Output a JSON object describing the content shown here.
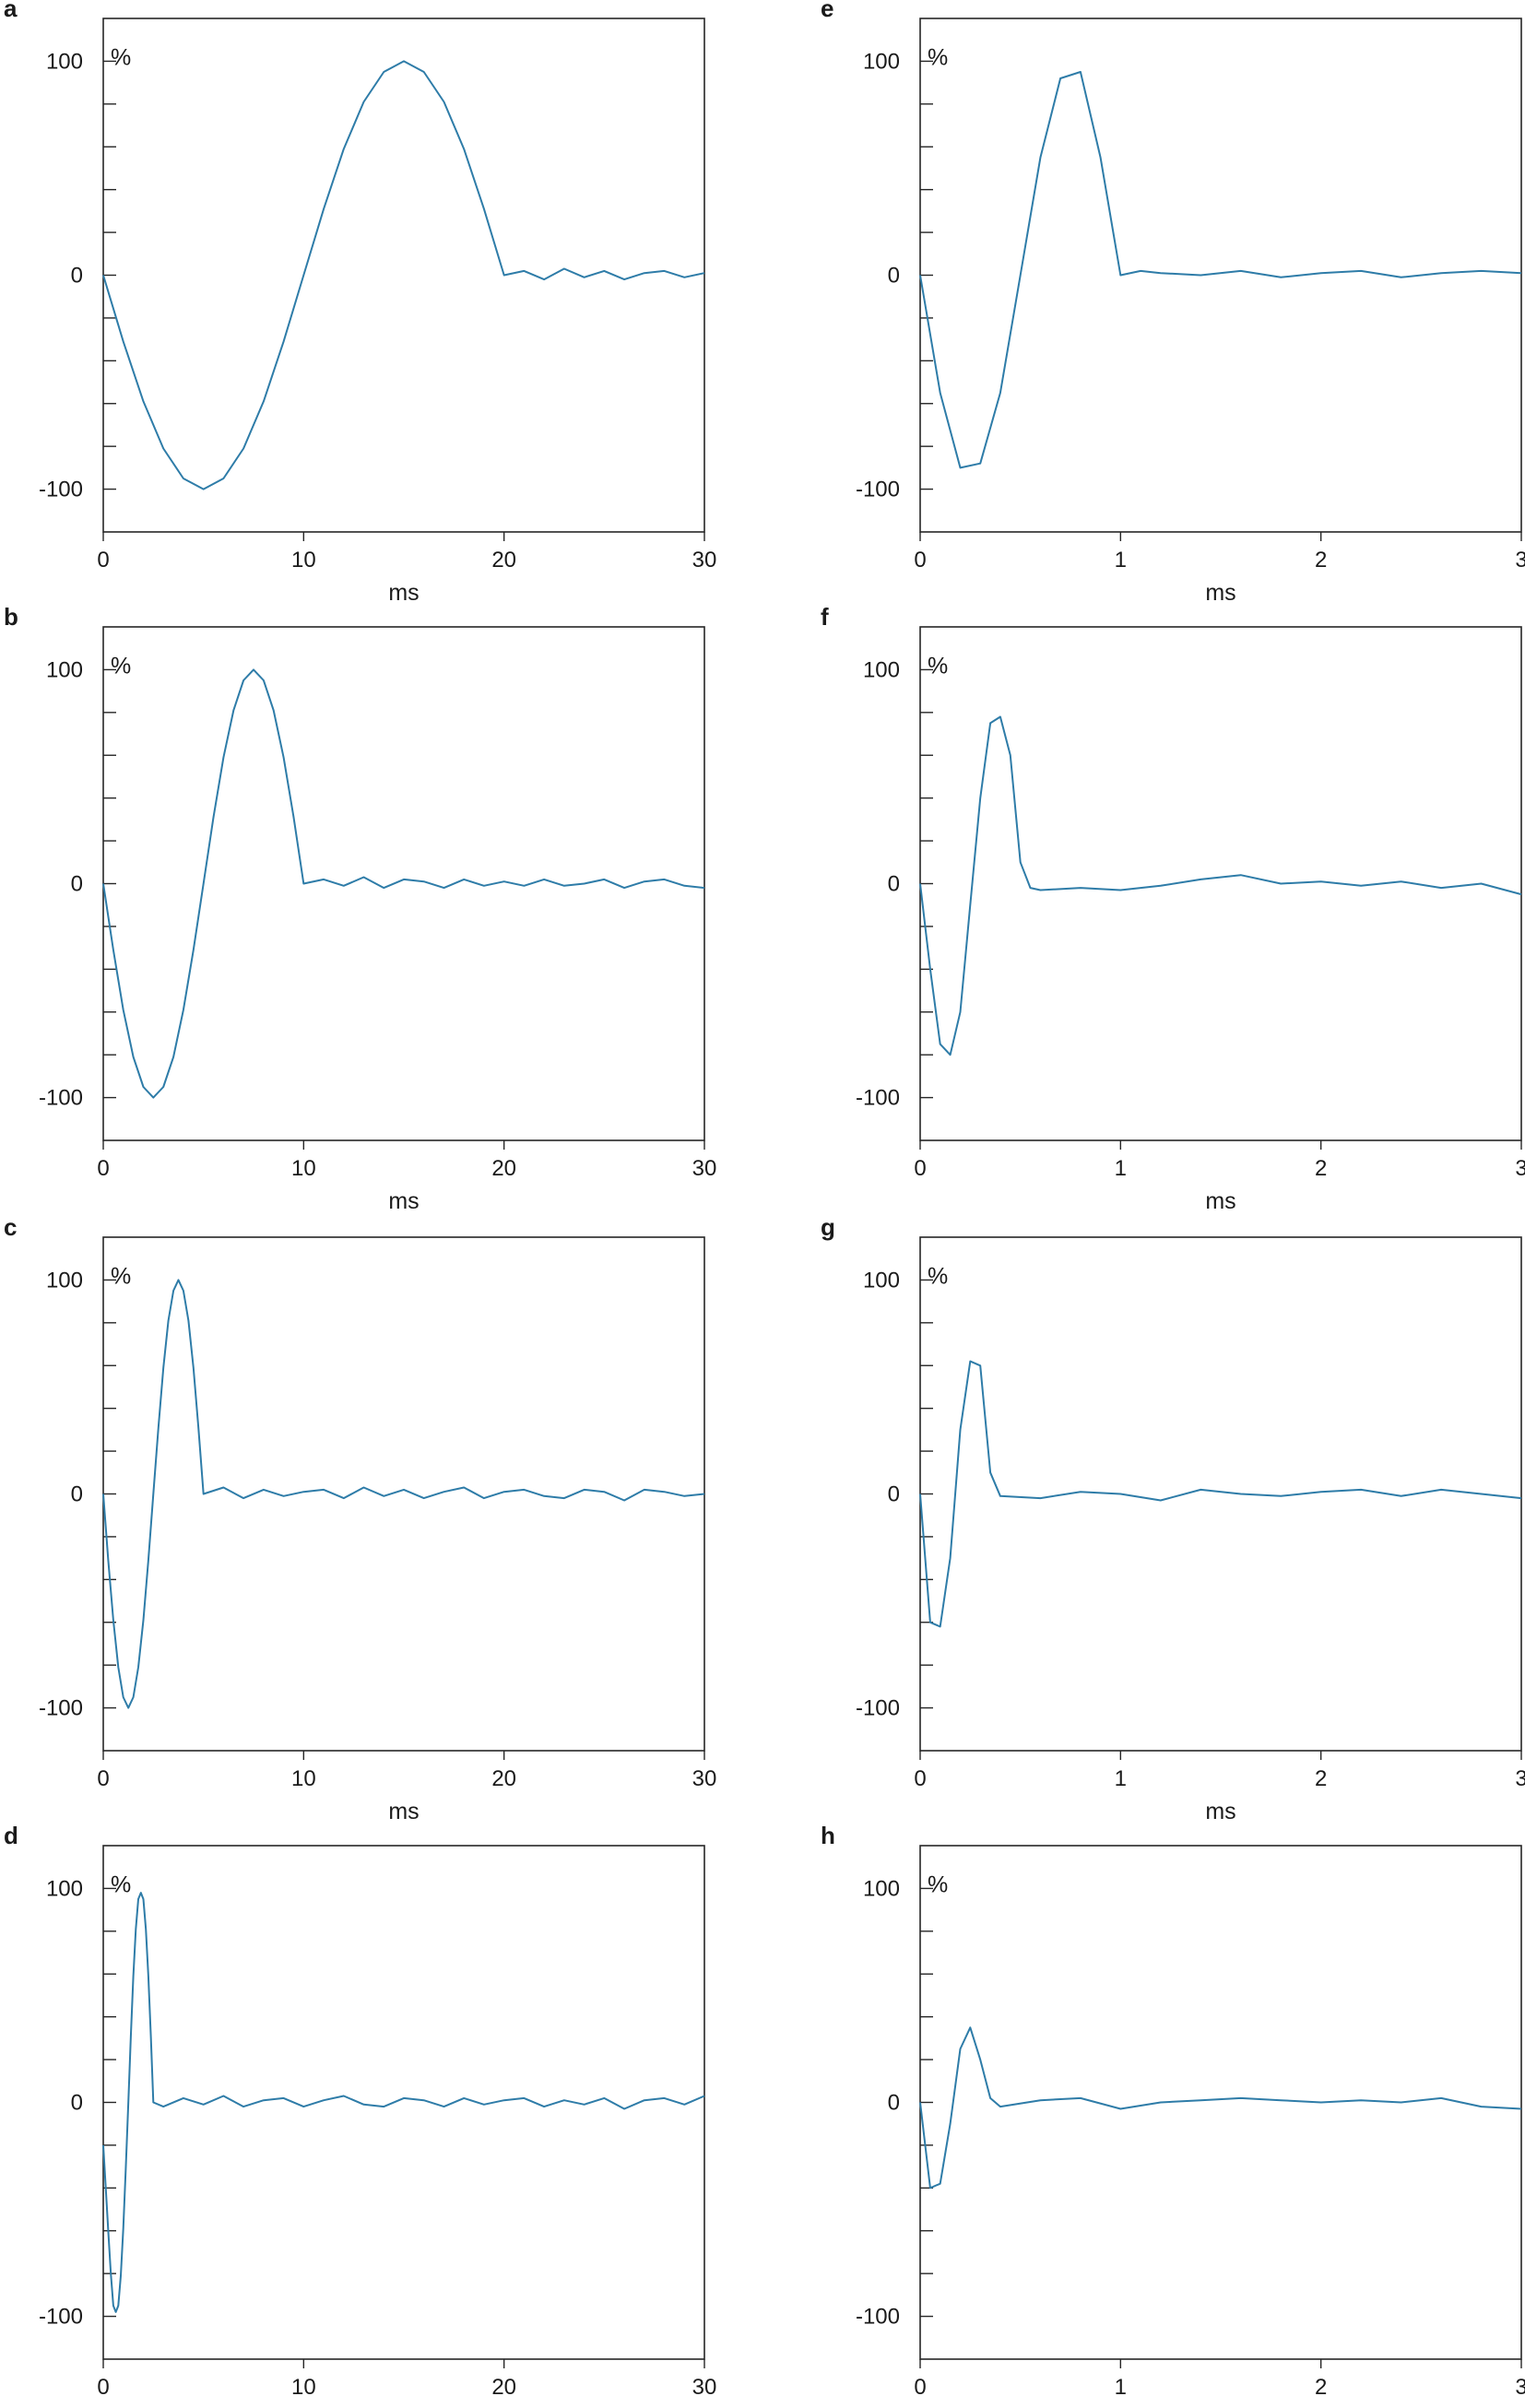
{
  "chart_data": [
    {
      "panel": "a",
      "type": "line",
      "xlabel": "ms",
      "ylabel": "%",
      "xlim": [
        0,
        30
      ],
      "ylim": [
        -120,
        120
      ],
      "x_ticks": [
        "0",
        "10",
        "20",
        "30"
      ],
      "y_ticks": [
        "100",
        "0",
        "-100"
      ],
      "grid": false,
      "series": [
        {
          "x": [
            0,
            1,
            2,
            3,
            4,
            5,
            6,
            7,
            8,
            9,
            10,
            11,
            12,
            13,
            14,
            15,
            16,
            17,
            18,
            19,
            20,
            21,
            22,
            23,
            24,
            25,
            26,
            27,
            28,
            29,
            30
          ],
          "values": [
            0,
            -31,
            -59,
            -81,
            -95,
            -100,
            -95,
            -81,
            -59,
            -31,
            0,
            31,
            59,
            81,
            95,
            100,
            95,
            81,
            59,
            31,
            0,
            2,
            -2,
            3,
            -1,
            2,
            -2,
            1,
            2,
            -1,
            1
          ]
        }
      ]
    },
    {
      "panel": "b",
      "type": "line",
      "xlabel": "ms",
      "ylabel": "%",
      "xlim": [
        0,
        30
      ],
      "ylim": [
        -120,
        120
      ],
      "x_ticks": [
        "0",
        "10",
        "20",
        "30"
      ],
      "y_ticks": [
        "100",
        "0",
        "-100"
      ],
      "grid": false,
      "series": [
        {
          "x": [
            0,
            0.5,
            1,
            1.5,
            2,
            2.5,
            3,
            3.5,
            4,
            4.5,
            5,
            5.5,
            6,
            6.5,
            7,
            7.5,
            8,
            8.5,
            9,
            9.5,
            10,
            11,
            12,
            13,
            14,
            15,
            16,
            17,
            18,
            19,
            20,
            21,
            22,
            23,
            24,
            25,
            26,
            27,
            28,
            29,
            30
          ],
          "values": [
            0,
            -31,
            -59,
            -81,
            -95,
            -100,
            -95,
            -81,
            -59,
            -31,
            0,
            31,
            59,
            81,
            95,
            100,
            95,
            81,
            59,
            31,
            0,
            2,
            -1,
            3,
            -2,
            2,
            1,
            -2,
            2,
            -1,
            1,
            -1,
            2,
            -1,
            0,
            2,
            -2,
            1,
            2,
            -1,
            -2
          ]
        }
      ]
    },
    {
      "panel": "c",
      "type": "line",
      "xlabel": "ms",
      "ylabel": "%",
      "xlim": [
        0,
        30
      ],
      "ylim": [
        -120,
        120
      ],
      "x_ticks": [
        "0",
        "10",
        "20",
        "30"
      ],
      "y_ticks": [
        "100",
        "0",
        "-100"
      ],
      "grid": false,
      "series": [
        {
          "x": [
            0,
            0.25,
            0.5,
            0.75,
            1,
            1.25,
            1.5,
            1.75,
            2,
            2.25,
            2.5,
            2.75,
            3,
            3.25,
            3.5,
            3.75,
            4,
            4.25,
            4.5,
            4.75,
            5,
            6,
            7,
            8,
            9,
            10,
            11,
            12,
            13,
            14,
            15,
            16,
            17,
            18,
            19,
            20,
            21,
            22,
            23,
            24,
            25,
            26,
            27,
            28,
            29,
            30
          ],
          "values": [
            0,
            -31,
            -59,
            -81,
            -95,
            -100,
            -95,
            -81,
            -59,
            -31,
            0,
            31,
            59,
            81,
            95,
            100,
            95,
            81,
            59,
            31,
            0,
            3,
            -2,
            2,
            -1,
            1,
            2,
            -2,
            3,
            -1,
            2,
            -2,
            1,
            3,
            -2,
            1,
            2,
            -1,
            -2,
            2,
            1,
            -3,
            2,
            1,
            -1,
            0
          ]
        }
      ]
    },
    {
      "panel": "d",
      "type": "line",
      "xlabel": "ms",
      "ylabel": "%",
      "xlim": [
        0,
        30
      ],
      "ylim": [
        -120,
        120
      ],
      "x_ticks": [
        "0",
        "10",
        "20",
        "30"
      ],
      "y_ticks": [
        "100",
        "0",
        "-100"
      ],
      "grid": false,
      "series": [
        {
          "x": [
            0,
            0.125,
            0.25,
            0.375,
            0.5,
            0.625,
            0.75,
            0.875,
            1,
            1.125,
            1.25,
            1.375,
            1.5,
            1.625,
            1.75,
            1.875,
            2,
            2.125,
            2.25,
            2.375,
            2.5,
            3,
            4,
            5,
            6,
            7,
            8,
            9,
            10,
            11,
            12,
            13,
            14,
            15,
            16,
            17,
            18,
            19,
            20,
            21,
            22,
            23,
            24,
            25,
            26,
            27,
            28,
            29,
            30
          ],
          "values": [
            -20,
            -40,
            -60,
            -80,
            -95,
            -98,
            -95,
            -81,
            -59,
            -31,
            0,
            31,
            59,
            81,
            95,
            98,
            95,
            81,
            59,
            31,
            0,
            -2,
            2,
            -1,
            3,
            -2,
            1,
            2,
            -2,
            1,
            3,
            -1,
            -2,
            2,
            1,
            -2,
            2,
            -1,
            1,
            2,
            -2,
            1,
            -1,
            2,
            -3,
            1,
            2,
            -1,
            3
          ]
        }
      ]
    },
    {
      "panel": "e",
      "type": "line",
      "xlabel": "ms",
      "ylabel": "%",
      "xlim": [
        0,
        3
      ],
      "ylim": [
        -120,
        120
      ],
      "x_ticks": [
        "0",
        "1",
        "2",
        "3"
      ],
      "y_ticks": [
        "100",
        "0",
        "-100"
      ],
      "grid": false,
      "series": [
        {
          "x": [
            0,
            0.1,
            0.2,
            0.3,
            0.4,
            0.5,
            0.6,
            0.7,
            0.8,
            0.9,
            1.0,
            1.1,
            1.2,
            1.4,
            1.6,
            1.8,
            2.0,
            2.2,
            2.4,
            2.6,
            2.8,
            3.0
          ],
          "values": [
            0,
            -55,
            -90,
            -88,
            -55,
            0,
            55,
            92,
            95,
            55,
            0,
            2,
            1,
            0,
            2,
            -1,
            1,
            2,
            -1,
            1,
            2,
            1
          ]
        }
      ]
    },
    {
      "panel": "f",
      "type": "line",
      "xlabel": "ms",
      "ylabel": "%",
      "xlim": [
        0,
        3
      ],
      "ylim": [
        -120,
        120
      ],
      "x_ticks": [
        "0",
        "1",
        "2",
        "3"
      ],
      "y_ticks": [
        "100",
        "0",
        "-100"
      ],
      "grid": false,
      "series": [
        {
          "x": [
            0,
            0.05,
            0.1,
            0.15,
            0.2,
            0.25,
            0.3,
            0.35,
            0.4,
            0.45,
            0.5,
            0.55,
            0.6,
            0.8,
            1.0,
            1.2,
            1.4,
            1.6,
            1.8,
            2.0,
            2.2,
            2.4,
            2.6,
            2.8,
            3.0
          ],
          "values": [
            0,
            -40,
            -75,
            -80,
            -60,
            -10,
            40,
            75,
            78,
            60,
            10,
            -2,
            -3,
            -2,
            -3,
            -1,
            2,
            4,
            0,
            1,
            -1,
            1,
            -2,
            0,
            -5
          ]
        }
      ]
    },
    {
      "panel": "g",
      "type": "line",
      "xlabel": "ms",
      "ylabel": "%",
      "xlim": [
        0,
        3
      ],
      "ylim": [
        -120,
        120
      ],
      "x_ticks": [
        "0",
        "1",
        "2",
        "3"
      ],
      "y_ticks": [
        "100",
        "0",
        "-100"
      ],
      "grid": false,
      "series": [
        {
          "x": [
            0,
            0.05,
            0.1,
            0.15,
            0.2,
            0.25,
            0.3,
            0.35,
            0.4,
            0.6,
            0.8,
            1.0,
            1.2,
            1.4,
            1.6,
            1.8,
            2.0,
            2.2,
            2.4,
            2.6,
            2.8,
            3.0
          ],
          "values": [
            0,
            -60,
            -62,
            -30,
            30,
            62,
            60,
            10,
            -1,
            -2,
            1,
            0,
            -3,
            2,
            0,
            -1,
            1,
            2,
            -1,
            2,
            0,
            -2
          ]
        }
      ]
    },
    {
      "panel": "h",
      "type": "line",
      "xlabel": "ms",
      "ylabel": "%",
      "xlim": [
        0,
        3
      ],
      "ylim": [
        -120,
        120
      ],
      "x_ticks": [
        "0",
        "1",
        "2",
        "3"
      ],
      "y_ticks": [
        "100",
        "0",
        "-100"
      ],
      "grid": false,
      "series": [
        {
          "x": [
            0,
            0.05,
            0.1,
            0.15,
            0.2,
            0.25,
            0.3,
            0.35,
            0.4,
            0.6,
            0.8,
            1.0,
            1.2,
            1.4,
            1.6,
            1.8,
            2.0,
            2.2,
            2.4,
            2.6,
            2.8,
            3.0
          ],
          "values": [
            0,
            -40,
            -38,
            -10,
            25,
            35,
            20,
            2,
            -2,
            1,
            2,
            -3,
            0,
            1,
            2,
            1,
            0,
            1,
            0,
            2,
            -2,
            -3
          ]
        }
      ]
    }
  ]
}
